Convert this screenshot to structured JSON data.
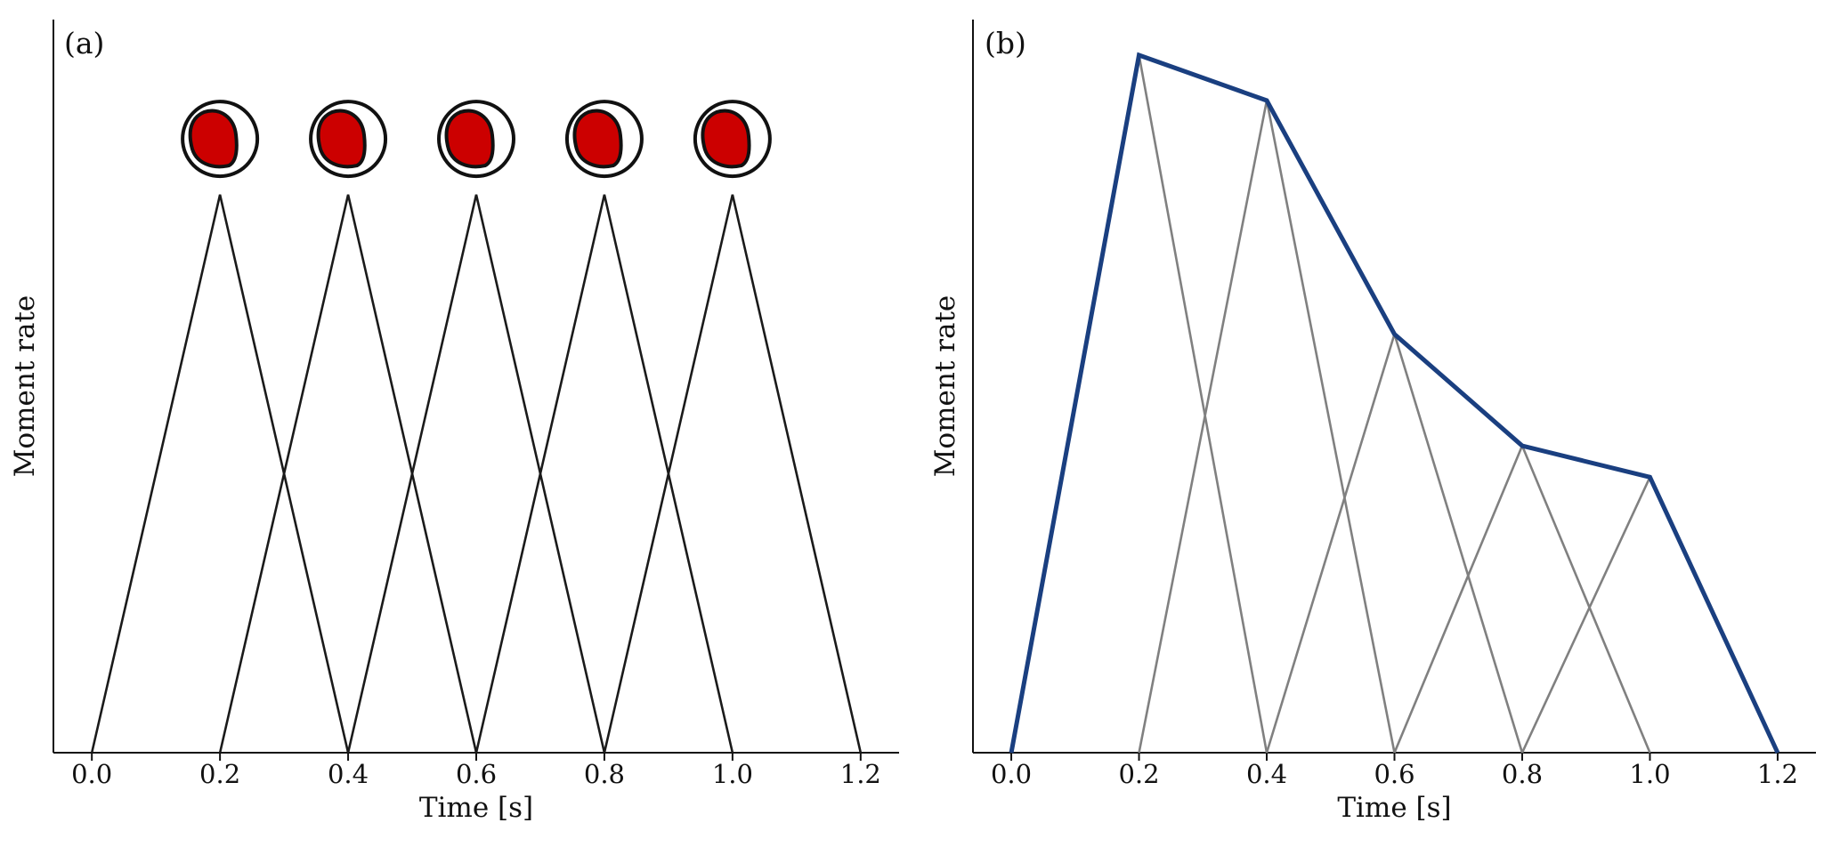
{
  "chart_data": [
    {
      "type": "line",
      "panel_label": "(a)",
      "xlabel": "Time [s]",
      "ylabel": "Moment rate",
      "xlim": [
        -0.06,
        1.26
      ],
      "ylim": [
        0,
        1.0
      ],
      "x_ticks": [
        "0.0",
        "0.2",
        "0.4",
        "0.6",
        "0.8",
        "1.0",
        "1.2"
      ],
      "grid": false,
      "series": [
        {
          "x": [
            0.0,
            0.2,
            0.4
          ],
          "y": [
            0,
            0.8,
            0
          ]
        },
        {
          "x": [
            0.2,
            0.4,
            0.6
          ],
          "y": [
            0,
            0.8,
            0
          ]
        },
        {
          "x": [
            0.4,
            0.6,
            0.8
          ],
          "y": [
            0,
            0.8,
            0
          ]
        },
        {
          "x": [
            0.6,
            0.8,
            1.0
          ],
          "y": [
            0,
            0.8,
            0
          ]
        },
        {
          "x": [
            0.8,
            1.0,
            1.2
          ],
          "y": [
            0,
            0.8,
            0
          ]
        }
      ],
      "markers": {
        "x": [
          0.2,
          0.4,
          0.6,
          0.8,
          1.0
        ],
        "y": 0.88,
        "icon": "focal-mechanism-beachball-icon",
        "fill_color": "#cc0000"
      },
      "line_color": "#1a1a1a"
    },
    {
      "type": "line",
      "panel_label": "(b)",
      "xlabel": "Time [s]",
      "ylabel": "Moment rate",
      "xlim": [
        -0.06,
        1.26
      ],
      "ylim": [
        0,
        1.0
      ],
      "x_ticks": [
        "0.0",
        "0.2",
        "0.4",
        "0.6",
        "0.8",
        "1.0",
        "1.2"
      ],
      "grid": false,
      "series": [
        {
          "x": [
            0.0,
            0.2,
            0.4
          ],
          "y": [
            0,
            1.0,
            0
          ]
        },
        {
          "x": [
            0.2,
            0.4,
            0.6
          ],
          "y": [
            0,
            0.935,
            0
          ]
        },
        {
          "x": [
            0.4,
            0.6,
            0.8
          ],
          "y": [
            0,
            0.6,
            0
          ]
        },
        {
          "x": [
            0.6,
            0.8,
            1.0
          ],
          "y": [
            0,
            0.44,
            0
          ]
        },
        {
          "x": [
            0.8,
            1.0,
            1.2
          ],
          "y": [
            0,
            0.395,
            0
          ]
        }
      ],
      "envelope": {
        "x": [
          0.0,
          0.2,
          0.4,
          0.6,
          0.8,
          1.0,
          1.2
        ],
        "y": [
          0,
          1.0,
          0.935,
          0.6,
          0.44,
          0.395,
          0
        ]
      },
      "line_color": "#808080",
      "envelope_color": "#1a3f80"
    }
  ]
}
